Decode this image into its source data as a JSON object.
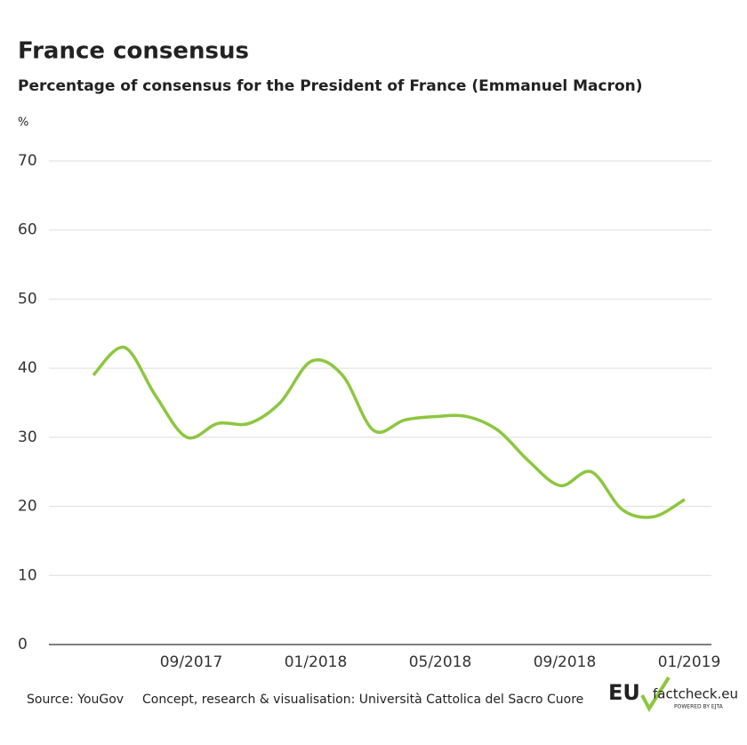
{
  "chart_data": {
    "type": "line",
    "title": "France consensus",
    "subtitle": "Percentage of consensus for the President of France (Emmanuel Macron)",
    "y_unit": "%",
    "categories": [
      null,
      null,
      null,
      "09/2017",
      null,
      null,
      null,
      "01/2018",
      null,
      null,
      null,
      "05/2018",
      null,
      null,
      null,
      "09/2018",
      null,
      null,
      null,
      "01/2019"
    ],
    "series": [
      {
        "name": "Consensus",
        "color": "#8dc63f",
        "values": [
          39,
          43,
          36,
          30,
          32,
          32,
          35,
          41,
          39,
          31,
          32.5,
          33,
          33,
          31,
          26.5,
          23,
          25,
          19.5,
          18.5,
          21
        ]
      }
    ],
    "ylim": [
      0,
      70
    ],
    "yticks": [
      0,
      10,
      20,
      30,
      40,
      50,
      60,
      70
    ],
    "grid": true,
    "source": "Source: YouGov",
    "credit": "Concept, research & visualisation: Università Cattolica del Sacro Cuore",
    "logo": {
      "brand": "EU",
      "site": "factcheck.eu",
      "tagline": "POWERED BY EJTA"
    }
  }
}
